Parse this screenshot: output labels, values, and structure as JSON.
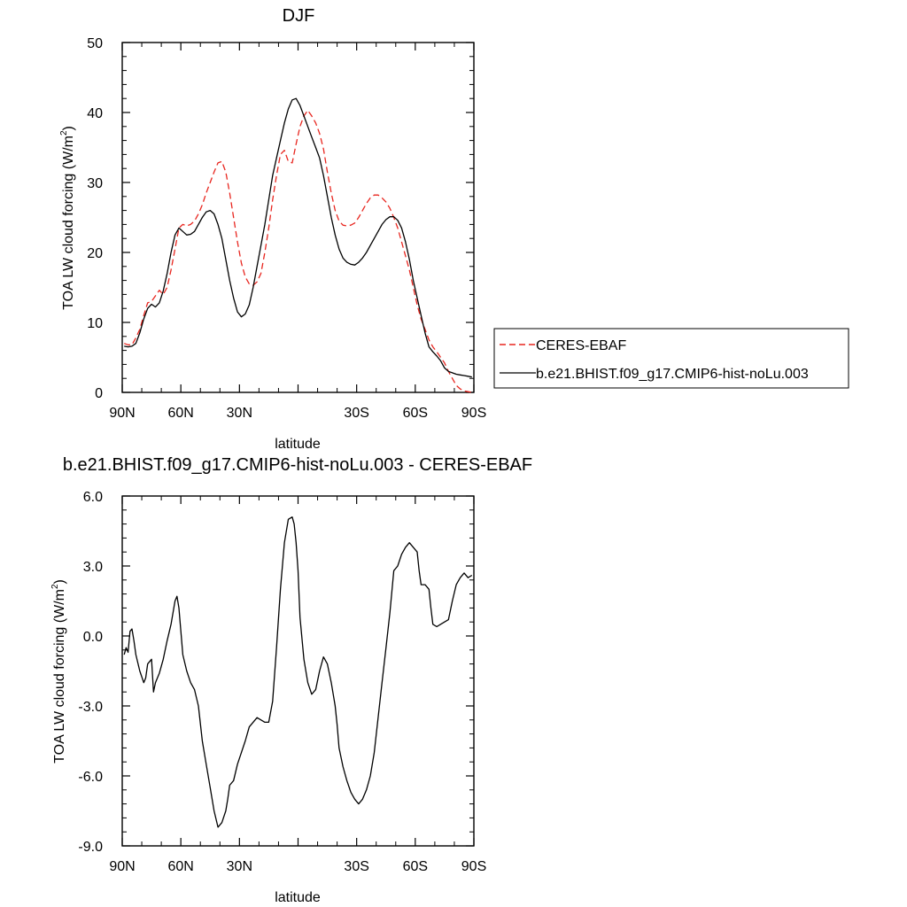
{
  "colors": {
    "ceres": "#e8261f",
    "model": "#000000",
    "axis": "#000000"
  },
  "chart_data": [
    {
      "type": "line",
      "title": "DJF",
      "xlabel": "latitude",
      "ylabel": "TOA LW cloud forcing (W/m",
      "ylabel_sup": "2",
      "ylabel_end": ")",
      "xlim": [
        90,
        -90
      ],
      "ylim": [
        0,
        50
      ],
      "xticks": [
        90,
        60,
        30,
        0,
        -30,
        -60,
        -90
      ],
      "xtick_labels": [
        "90N",
        "60N",
        "30N",
        "",
        "30S",
        "60S",
        "90S"
      ],
      "yticks": [
        0,
        10,
        20,
        30,
        40,
        50
      ],
      "ytick_labels": [
        "0",
        "10",
        "20",
        "30",
        "40",
        "50"
      ],
      "legend": {
        "placement": "right",
        "entries": [
          "CERES-EBAF",
          "b.e21.BHIST.f09_g17.CMIP6-hist-noLu.003"
        ]
      },
      "series": [
        {
          "name": "CERES-EBAF",
          "style": "dashed",
          "x": [
            89,
            87,
            85,
            83,
            81,
            79,
            77,
            75,
            73,
            71,
            69,
            67,
            65,
            63,
            61,
            59,
            57,
            55,
            53,
            51,
            49,
            47,
            45,
            43,
            41,
            39,
            37,
            35,
            33,
            31,
            29,
            27,
            25,
            23,
            21,
            19,
            17,
            15,
            13,
            11,
            9,
            7,
            5,
            3,
            1,
            -1,
            -3,
            -5,
            -7,
            -9,
            -11,
            -13,
            -15,
            -17,
            -19,
            -21,
            -23,
            -25,
            -27,
            -29,
            -31,
            -33,
            -35,
            -37,
            -39,
            -41,
            -43,
            -45,
            -47,
            -49,
            -51,
            -53,
            -55,
            -57,
            -59,
            -61,
            -63,
            -65,
            -67,
            -69,
            -71,
            -73,
            -75,
            -77,
            -79,
            -81,
            -83,
            -85,
            -87,
            -89
          ],
          "values": [
            7.0,
            6.8,
            6.8,
            7.8,
            9.0,
            11.0,
            12.8,
            13.0,
            13.8,
            14.6,
            14.0,
            15.0,
            17.5,
            20.5,
            23.5,
            24.0,
            23.8,
            24.0,
            24.5,
            25.5,
            26.8,
            28.5,
            30.0,
            31.5,
            32.8,
            33.0,
            31.5,
            28.5,
            25.0,
            21.5,
            18.5,
            16.5,
            15.5,
            15.3,
            15.8,
            17.0,
            20.0,
            23.5,
            27.5,
            31.0,
            34.0,
            34.6,
            33.0,
            32.8,
            35.5,
            38.0,
            39.5,
            40.3,
            39.5,
            38.5,
            37.0,
            34.8,
            31.5,
            28.5,
            26.0,
            24.5,
            23.9,
            23.8,
            23.9,
            24.2,
            25.0,
            26.0,
            27.0,
            27.8,
            28.2,
            28.2,
            27.8,
            27.2,
            26.3,
            25.0,
            23.5,
            21.5,
            19.5,
            17.5,
            15.0,
            12.5,
            10.5,
            9.0,
            7.5,
            6.5,
            5.8,
            5.0,
            4.2,
            3.0,
            2.0,
            1.0,
            0.5,
            0.2,
            0.1,
            0.0
          ]
        },
        {
          "name": "b.e21.BHIST.f09_g17.CMIP6-hist-noLu.003",
          "style": "solid",
          "x": [
            89,
            87,
            85,
            83,
            81,
            79,
            77,
            75,
            73,
            71,
            69,
            67,
            65,
            63,
            61,
            59,
            57,
            55,
            53,
            51,
            49,
            47,
            45,
            43,
            41,
            39,
            37,
            35,
            33,
            31,
            29,
            27,
            25,
            23,
            21,
            19,
            17,
            15,
            13,
            11,
            9,
            7,
            5,
            3,
            1,
            -1,
            -3,
            -5,
            -7,
            -9,
            -11,
            -13,
            -15,
            -17,
            -19,
            -21,
            -23,
            -25,
            -27,
            -29,
            -31,
            -33,
            -35,
            -37,
            -39,
            -41,
            -43,
            -45,
            -47,
            -49,
            -51,
            -53,
            -55,
            -57,
            -59,
            -61,
            -63,
            -65,
            -67,
            -69,
            -71,
            -73,
            -75,
            -77,
            -79,
            -81,
            -83,
            -85,
            -87,
            -89
          ],
          "values": [
            6.6,
            6.5,
            6.6,
            7.0,
            8.5,
            10.5,
            12.0,
            12.6,
            12.2,
            12.8,
            14.5,
            17.0,
            20.0,
            22.5,
            23.5,
            23.0,
            22.5,
            22.6,
            23.0,
            24.0,
            25.0,
            25.8,
            26.0,
            25.5,
            24.0,
            22.0,
            19.0,
            16.0,
            13.5,
            11.5,
            10.8,
            11.2,
            12.5,
            15.0,
            18.0,
            21.0,
            24.0,
            27.5,
            31.0,
            33.5,
            36.0,
            38.5,
            40.5,
            41.8,
            42.0,
            41.0,
            39.5,
            38.0,
            36.5,
            35.0,
            33.5,
            31.0,
            28.0,
            25.0,
            22.5,
            20.5,
            19.2,
            18.6,
            18.3,
            18.2,
            18.6,
            19.2,
            20.0,
            21.0,
            22.0,
            23.0,
            24.0,
            24.7,
            25.1,
            25.1,
            24.6,
            23.5,
            21.5,
            19.0,
            16.0,
            13.5,
            11.0,
            8.5,
            6.5,
            5.8,
            5.2,
            4.5,
            3.5,
            3.0,
            2.8,
            2.6,
            2.5,
            2.4,
            2.3,
            2.2
          ]
        }
      ]
    },
    {
      "type": "line",
      "title": "b.e21.BHIST.f09_g17.CMIP6-hist-noLu.003 - CERES-EBAF",
      "xlabel": "latitude",
      "ylabel": "TOA LW cloud forcing (W/m",
      "ylabel_sup": "2",
      "ylabel_end": ")",
      "xlim": [
        90,
        -90
      ],
      "ylim": [
        -9,
        6
      ],
      "xticks": [
        90,
        60,
        30,
        0,
        -30,
        -60,
        -90
      ],
      "xtick_labels": [
        "90N",
        "60N",
        "30N",
        "",
        "30S",
        "60S",
        "90S"
      ],
      "yticks": [
        -9,
        -6,
        -3,
        0,
        3,
        6
      ],
      "ytick_labels": [
        "-9.0",
        "-6.0",
        "-3.0",
        "0.0",
        "3.0",
        "6.0"
      ],
      "series": [
        {
          "name": "difference",
          "style": "solid",
          "x": [
            89,
            88,
            87,
            86,
            85,
            84,
            83,
            81,
            79,
            78,
            77,
            75,
            74,
            73,
            71,
            69,
            67,
            65,
            63,
            62,
            61,
            60,
            59,
            57,
            55,
            53,
            51,
            49,
            47,
            45,
            43,
            41,
            39,
            37,
            36,
            35,
            33,
            31,
            29,
            27,
            25,
            23,
            21,
            19,
            17,
            15,
            13,
            11,
            9,
            7,
            5,
            3,
            2,
            1,
            0,
            -1,
            -3,
            -5,
            -7,
            -9,
            -11,
            -13,
            -15,
            -17,
            -19,
            -20,
            -21,
            -23,
            -25,
            -27,
            -29,
            -31,
            -33,
            -35,
            -37,
            -39,
            -41,
            -43,
            -45,
            -47,
            -49,
            -51,
            -53,
            -55,
            -57,
            -59,
            -61,
            -62,
            -63,
            -65,
            -67,
            -68,
            -69,
            -71,
            -73,
            -75,
            -77,
            -79,
            -81,
            -83,
            -85,
            -87,
            -89
          ],
          "values": [
            -0.8,
            -0.5,
            -0.7,
            0.2,
            0.3,
            -0.2,
            -0.8,
            -1.5,
            -2.0,
            -1.8,
            -1.2,
            -1.0,
            -2.4,
            -2.0,
            -1.6,
            -1.0,
            -0.2,
            0.5,
            1.5,
            1.7,
            1.2,
            0.2,
            -0.8,
            -1.5,
            -2.0,
            -2.3,
            -3.0,
            -4.5,
            -5.5,
            -6.5,
            -7.5,
            -8.2,
            -8.0,
            -7.5,
            -7.0,
            -6.4,
            -6.2,
            -5.5,
            -5.0,
            -4.5,
            -3.9,
            -3.7,
            -3.5,
            -3.6,
            -3.7,
            -3.7,
            -2.8,
            -0.5,
            2.0,
            4.0,
            5.0,
            5.1,
            4.8,
            4.0,
            2.8,
            0.8,
            -1.0,
            -2.0,
            -2.5,
            -2.3,
            -1.5,
            -0.9,
            -1.2,
            -2.0,
            -3.0,
            -3.8,
            -4.8,
            -5.6,
            -6.2,
            -6.7,
            -7.0,
            -7.2,
            -7.0,
            -6.6,
            -6.0,
            -5.0,
            -3.5,
            -2.0,
            -0.5,
            1.0,
            2.8,
            3.0,
            3.5,
            3.8,
            4.0,
            3.8,
            3.6,
            2.8,
            2.2,
            2.2,
            2.0,
            1.2,
            0.5,
            0.4,
            0.5,
            0.6,
            0.7,
            1.5,
            2.2,
            2.5,
            2.7,
            2.5,
            2.6
          ]
        }
      ]
    }
  ]
}
